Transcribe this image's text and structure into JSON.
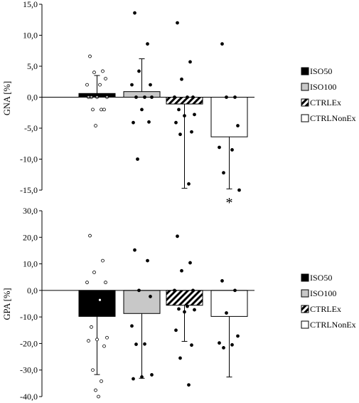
{
  "chart_data": [
    {
      "type": "bar",
      "ylabel": "GNA [%]",
      "ylim": [
        -15,
        15
      ],
      "ytick_labels": [
        "15,0",
        "10,0",
        "5,0",
        "0,0",
        "-5,0",
        "-10,0",
        "-15,0"
      ],
      "grid": false,
      "legend_placement": "right",
      "series": [
        {
          "name": "ISO50",
          "value": 0.6,
          "sd": 2.9,
          "fill": "solid-black",
          "points": [
            6.6,
            4.2,
            4.0,
            3.0,
            2.0,
            2.0,
            0.0,
            0.0,
            0.0,
            0.0,
            -2.0,
            -2.0,
            -2.0,
            -4.6
          ]
        },
        {
          "name": "ISO100",
          "value": 0.9,
          "sd": 5.3,
          "fill": "light-gray",
          "points": [
            13.6,
            8.6,
            4.2,
            2.0,
            2.0,
            0.0,
            0.0,
            0.0,
            -2.0,
            -4.1,
            -4.0,
            -10.0
          ]
        },
        {
          "name": "CTRLEx",
          "value": -1.1,
          "sd": 13.6,
          "fill": "diagonal-hatch",
          "points": [
            12.0,
            5.7,
            2.9,
            0.0,
            0.0,
            0.0,
            -2.0,
            -2.8,
            -3.0,
            -4.1,
            -5.6,
            -6.0,
            -14.0
          ]
        },
        {
          "name": "CTRLNonEx",
          "value": -6.4,
          "sd": 8.4,
          "fill": "white",
          "points": [
            8.6,
            0.0,
            0.0,
            -4.6,
            -8.1,
            -8.5,
            -12.2,
            -15.0
          ]
        }
      ],
      "annotations": [
        {
          "text": "*",
          "series": "CTRLNonEx"
        }
      ]
    },
    {
      "type": "bar",
      "ylabel": "GPA [%]",
      "ylim": [
        -40,
        30
      ],
      "ytick_labels": [
        "30,0",
        "20,0",
        "10,0",
        "0,0",
        "-10,0",
        "-20,0",
        "-30,0",
        "-40,0"
      ],
      "grid": false,
      "legend_placement": "right",
      "series": [
        {
          "name": "ISO50",
          "value": -9.8,
          "sd": 21.9,
          "fill": "solid-black",
          "points": [
            20.6,
            11.2,
            6.8,
            3.0,
            3.0,
            -3.6,
            -13.8,
            -17.8,
            -18.5,
            -19.0,
            -21.0,
            -30.0,
            -34.2,
            -37.6,
            -40.0
          ]
        },
        {
          "name": "ISO100",
          "value": -8.7,
          "sd": 24.4,
          "fill": "light-gray",
          "points": [
            15.2,
            11.2,
            0.0,
            -2.3,
            -13.4,
            -20.2,
            -20.3,
            -31.8,
            -32.6,
            -33.3
          ]
        },
        {
          "name": "CTRLEx",
          "value": -5.6,
          "sd": 13.6,
          "fill": "diagonal-hatch",
          "points": [
            20.4,
            10.4,
            7.4,
            0.0,
            0.0,
            -6.0,
            -7.0,
            -7.3,
            -8.1,
            -15.0,
            -20.6,
            -25.5,
            -35.6
          ]
        },
        {
          "name": "CTRLNonEx",
          "value": -9.8,
          "sd": 22.8,
          "fill": "white",
          "points": [
            3.6,
            0.0,
            -8.5,
            -17.2,
            -19.8,
            -20.5,
            -21.6
          ]
        }
      ]
    }
  ]
}
